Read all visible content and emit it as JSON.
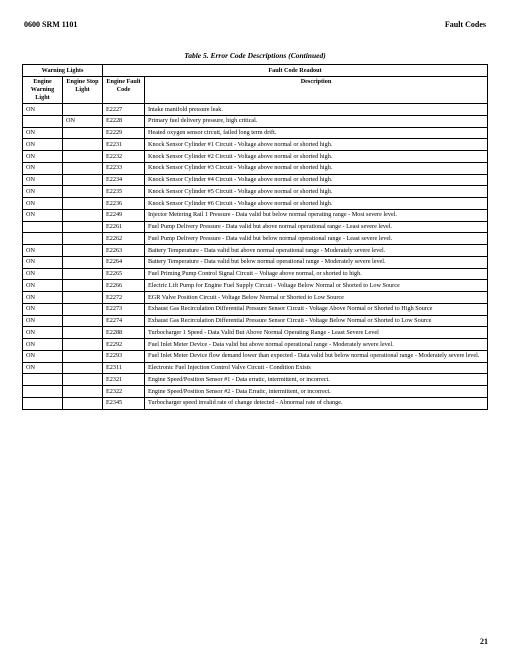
{
  "header": {
    "left": "0600 SRM 1101",
    "right": "Fault Codes"
  },
  "caption": "Table 5. Error Code Descriptions (Continued)",
  "page_number": "21",
  "table": {
    "group_headers": {
      "warning_lights": "Warning Lights",
      "readout": "Fault Code Readout"
    },
    "columns": {
      "c1": "Engine Warning Light",
      "c2": "Engine Stop Light",
      "c3": "Engine Fault Code",
      "c4": "Description"
    },
    "rows": [
      {
        "ewl": "ON",
        "esl": "",
        "code": "E2227",
        "desc": "Intake manifold pressure leak."
      },
      {
        "ewl": "",
        "esl": "ON",
        "code": "E2228",
        "desc": "Primary fuel delivery pressure, high critical."
      },
      {
        "ewl": "ON",
        "esl": "",
        "code": "E2229",
        "desc": "Heated oxygen sensor circuit, failed long term drift."
      },
      {
        "ewl": "ON",
        "esl": "",
        "code": "E2231",
        "desc": "Knock Sensor Cylinder #1 Circuit - Voltage above normal or shorted high."
      },
      {
        "ewl": "ON",
        "esl": "",
        "code": "E2232",
        "desc": "Knock Sensor Cylinder #2 Circuit - Voltage above normal or shorted high."
      },
      {
        "ewl": "ON",
        "esl": "",
        "code": "E2233",
        "desc": "Knock Sensor Cylinder #3 Circuit - Voltage above normal or shorted high."
      },
      {
        "ewl": "ON",
        "esl": "",
        "code": "E2234",
        "desc": "Knock Sensor Cylinder #4 Circuit - Voltage above normal or shorted high."
      },
      {
        "ewl": "ON",
        "esl": "",
        "code": "E2235",
        "desc": "Knock Sensor Cylinder #5 Circuit - Voltage above normal or shorted high."
      },
      {
        "ewl": "ON",
        "esl": "",
        "code": "E2236",
        "desc": "Knock Sensor Cylinder #6 Circuit - Voltage above normal or shorted high."
      },
      {
        "ewl": "ON",
        "esl": "",
        "code": "E2249",
        "desc": "Injector Metering Rail 1 Pressure - Data valid but below normal operating range - Most severe level."
      },
      {
        "ewl": "",
        "esl": "",
        "code": "E2261",
        "desc": "Fuel Pump Delivery Pressure - Data valid but above normal operational range - Least severe level."
      },
      {
        "ewl": "",
        "esl": "",
        "code": "E2262",
        "desc": "Fuel Pump Delivery Pressure - Data valid but below normal operational range - Least severe level."
      },
      {
        "ewl": "ON",
        "esl": "",
        "code": "E2263",
        "desc": "Battery Temperature - Data valid but above normal operational range - Moderately severe level."
      },
      {
        "ewl": "ON",
        "esl": "",
        "code": "E2264",
        "desc": "Battery Temperature - Data valid but below normal operational range - Moderately severe level."
      },
      {
        "ewl": "ON",
        "esl": "",
        "code": "E2265",
        "desc": "Fuel Priming Pump Control Signal Circuit – Voltage above normal, or shorted to high."
      },
      {
        "ewl": "ON",
        "esl": "",
        "code": "E2266",
        "desc": "Electric Lift Pump for Engine Fuel Supply Circuit - Voltage Below Normal or Shorted to Low Source"
      },
      {
        "ewl": "ON",
        "esl": "",
        "code": "E2272",
        "desc": "EGR Valve Position Circuit - Voltage Below Normal or Shorted to Low Source"
      },
      {
        "ewl": "ON",
        "esl": "",
        "code": "E2273",
        "desc": "Exhaust Gas Recirculation Differential Pressure Sensor Circuit - Voltage Above Normal or Shorted to High Source"
      },
      {
        "ewl": "ON",
        "esl": "",
        "code": "E2274",
        "desc": "Exhaust Gas Recirculation Differential Pressure Sensor Circuit - Voltage Below Normal or Shorted to Low Source"
      },
      {
        "ewl": "ON",
        "esl": "",
        "code": "E2288",
        "desc": "Turbocharger 1 Speed - Data Valid But Above Normal Operating Range - Least Severe Level"
      },
      {
        "ewl": "ON",
        "esl": "",
        "code": "E2292",
        "desc": "Fuel Inlet Meter Device - Data valid but above normal operational range - Moderately severe level."
      },
      {
        "ewl": "ON",
        "esl": "",
        "code": "E2293",
        "desc": "Fuel Inlet Meter Device flow demand lower than expected - Data valid but below normal operational range - Moderately severe level."
      },
      {
        "ewl": "ON",
        "esl": "",
        "code": "E2311",
        "desc": "Electronic Fuel Injection Control Valve Circuit - Condition Exists"
      },
      {
        "ewl": "",
        "esl": "",
        "code": "E2321",
        "desc": "Engine Speed/Position Sensor #1 - Data erratic, intermittent, or incorrect."
      },
      {
        "ewl": "",
        "esl": "",
        "code": "E2322",
        "desc": "Engine Speed/Position Sensor #2 - Data Erratic, intermittent, or incorrect."
      },
      {
        "ewl": "",
        "esl": "",
        "code": "E2345",
        "desc": "Turbocharger speed invalid rate of change detected - Abnormal rate of change."
      }
    ]
  }
}
